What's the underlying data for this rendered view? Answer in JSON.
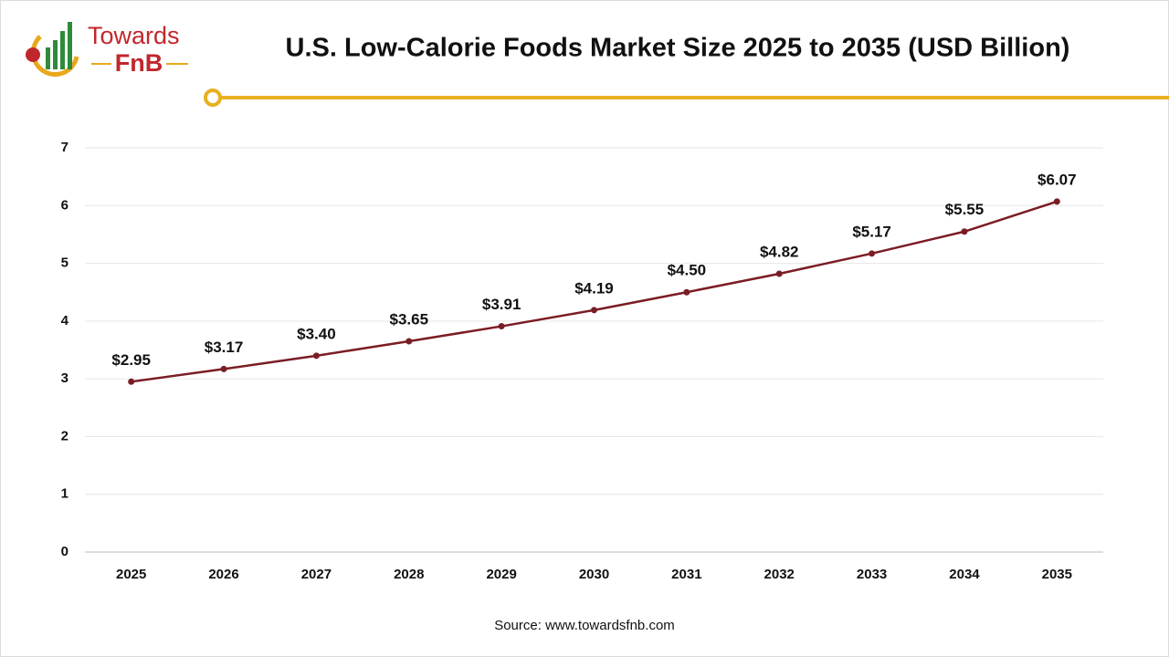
{
  "logo": {
    "top": "Towards",
    "bottom": "FnB"
  },
  "chart_data": {
    "type": "line",
    "title": "U.S. Low-Calorie Foods Market Size 2025 to 2035 (USD Billion)",
    "source": "Source: www.towardsfnb.com",
    "categories": [
      "2025",
      "2026",
      "2027",
      "2028",
      "2029",
      "2030",
      "2031",
      "2032",
      "2033",
      "2034",
      "2035"
    ],
    "values": [
      2.95,
      3.17,
      3.4,
      3.65,
      3.91,
      4.19,
      4.5,
      4.82,
      5.17,
      5.55,
      6.07
    ],
    "value_labels": [
      "$2.95",
      "$3.17",
      "$3.40",
      "$3.65",
      "$3.91",
      "$4.19",
      "$4.50",
      "$4.82",
      "$5.17",
      "$5.55",
      "$6.07"
    ],
    "color": "#7b1c24",
    "ylim": [
      0,
      7
    ],
    "yticks": [
      0,
      1,
      2,
      3,
      4,
      5,
      6,
      7
    ],
    "grid": true
  }
}
